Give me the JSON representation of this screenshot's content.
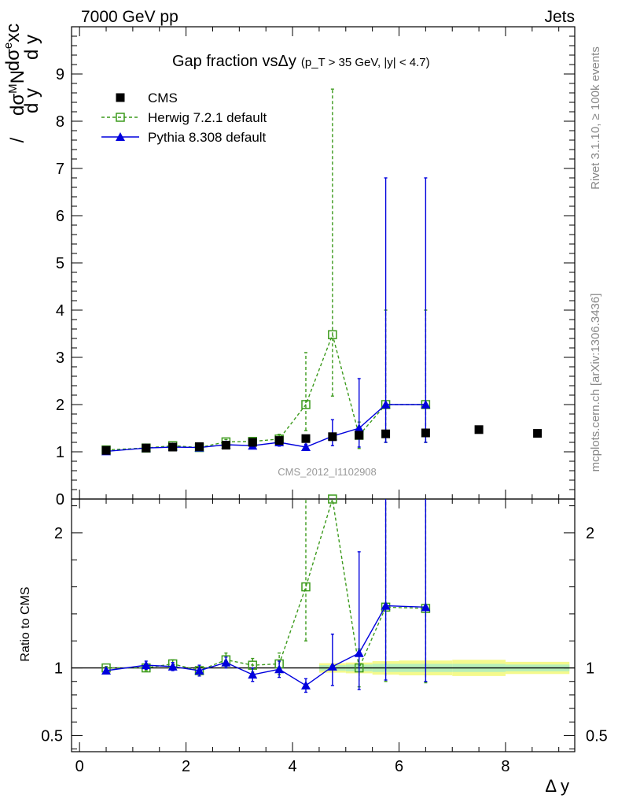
{
  "header": {
    "left": "7000 GeV pp",
    "right": "Jets",
    "side_top": "Rivet 3.1.10, ≥ 100k events",
    "side_bottom": "mcplots.cern.ch [arXiv:1306.3436]"
  },
  "chart_data": {
    "type": "scatter",
    "title": "Gap fraction vsΔy",
    "title_sub": "(p_T > 35 GeV, |y| < 4.7)",
    "watermark": "CMS_2012_I1102908",
    "xlabel": "Δ y",
    "ylabel_top": "dσ^M N / dσ^e xc",
    "ylabel_bottom": "d y / d y",
    "xlim": [
      -0.15,
      9.3
    ],
    "ylim": [
      0,
      10
    ],
    "xticks": [
      0,
      2,
      4,
      6,
      8
    ],
    "yticks": [
      0,
      1,
      2,
      3,
      4,
      5,
      6,
      7,
      8,
      9
    ],
    "legend_placement": "top-left",
    "series": [
      {
        "name": "CMS",
        "color": "#000000",
        "marker": "square-filled",
        "x": [
          0.5,
          1.25,
          1.75,
          2.25,
          2.75,
          3.25,
          3.75,
          4.25,
          4.75,
          5.25,
          5.75,
          6.5,
          7.5,
          8.6
        ],
        "y": [
          1.03,
          1.08,
          1.1,
          1.11,
          1.14,
          1.2,
          1.24,
          1.28,
          1.32,
          1.35,
          1.38,
          1.4,
          1.47,
          1.39
        ],
        "err": [
          0,
          0,
          0,
          0,
          0,
          0,
          0,
          0,
          0,
          0,
          0,
          0,
          0,
          0
        ]
      },
      {
        "name": "Herwig 7.2.1 default",
        "color": "#3c9a1c",
        "marker": "square-open",
        "dashed": true,
        "x": [
          0.5,
          1.25,
          1.75,
          2.25,
          2.75,
          3.25,
          3.75,
          4.25,
          4.75,
          5.25,
          5.75,
          6.5
        ],
        "y": [
          1.04,
          1.08,
          1.13,
          1.09,
          1.21,
          1.22,
          1.27,
          2.0,
          3.48,
          1.35,
          2.0,
          2.0
        ],
        "err_lo": [
          0.02,
          0.03,
          0.03,
          0.04,
          0.05,
          0.06,
          0.1,
          0.55,
          1.3,
          0.28,
          0.8,
          0.8
        ],
        "err_hi": [
          0.02,
          0.03,
          0.03,
          0.04,
          0.05,
          0.06,
          0.1,
          1.1,
          5.2,
          0.28,
          2.0,
          2.0
        ]
      },
      {
        "name": "Pythia 8.308 default",
        "color": "#0000dd",
        "marker": "triangle-filled",
        "dashed": false,
        "x": [
          0.5,
          1.25,
          1.75,
          2.25,
          2.75,
          3.25,
          3.75,
          4.25,
          4.75,
          5.25,
          5.75,
          6.5
        ],
        "y": [
          1.01,
          1.08,
          1.1,
          1.09,
          1.15,
          1.13,
          1.2,
          1.1,
          1.33,
          1.5,
          2.0,
          2.0
        ],
        "err_lo": [
          0.02,
          0.03,
          0.03,
          0.05,
          0.06,
          0.06,
          0.08,
          0.06,
          0.2,
          0.4,
          0.8,
          0.8
        ],
        "err_hi": [
          0.02,
          0.03,
          0.03,
          0.05,
          0.06,
          0.06,
          0.08,
          0.06,
          0.35,
          1.05,
          4.8,
          4.8
        ]
      }
    ],
    "ratio": {
      "ylabel": "Ratio to CMS",
      "ylim": [
        0.38,
        2.25
      ],
      "yticks": [
        0.5,
        1,
        2
      ],
      "band": {
        "x_edges": [
          4.5,
          5.0,
          5.5,
          6.0,
          7.0,
          8.0,
          9.2
        ],
        "err_inner": [
          0.02,
          0.025,
          0.03,
          0.03,
          0.03,
          0.025
        ],
        "err_outer": [
          0.035,
          0.04,
          0.05,
          0.055,
          0.06,
          0.045
        ]
      },
      "series": [
        {
          "name": "Herwig 7.2.1 default",
          "color": "#3c9a1c",
          "marker": "square-open",
          "dashed": true,
          "x": [
            0.5,
            1.25,
            1.75,
            2.25,
            2.75,
            3.25,
            3.75,
            4.25,
            4.75,
            5.25,
            5.75,
            6.5
          ],
          "y": [
            1.0,
            1.0,
            1.03,
            0.98,
            1.06,
            1.02,
            1.03,
            1.6,
            2.25,
            1.0,
            1.45,
            1.44
          ],
          "err_lo": [
            0.01,
            0.02,
            0.03,
            0.03,
            0.05,
            0.05,
            0.08,
            0.4,
            0.0,
            0.14,
            0.55,
            0.55
          ],
          "err_hi": [
            0.01,
            0.02,
            0.03,
            0.03,
            0.05,
            0.05,
            0.08,
            0.8,
            0.0,
            0.14,
            1.0,
            1.0
          ]
        },
        {
          "name": "Pythia 8.308 default",
          "color": "#0000dd",
          "marker": "triangle-filled",
          "dashed": false,
          "x": [
            0.5,
            1.25,
            1.75,
            2.25,
            2.75,
            3.25,
            3.75,
            4.25,
            4.75,
            5.25,
            5.75,
            6.5
          ],
          "y": [
            0.98,
            1.02,
            1.01,
            0.98,
            1.04,
            0.95,
            0.99,
            0.87,
            1.01,
            1.11,
            1.46,
            1.45
          ],
          "err_lo": [
            0.01,
            0.03,
            0.03,
            0.04,
            0.04,
            0.05,
            0.06,
            0.05,
            0.14,
            0.27,
            0.55,
            0.55
          ],
          "err_hi": [
            0.01,
            0.03,
            0.03,
            0.04,
            0.04,
            0.05,
            0.06,
            0.05,
            0.24,
            0.75,
            1.0,
            1.0
          ]
        }
      ]
    }
  }
}
